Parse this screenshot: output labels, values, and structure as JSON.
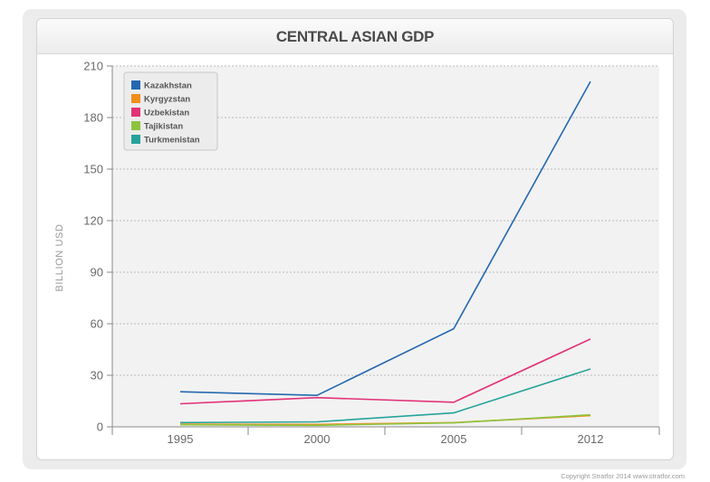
{
  "chart_data": {
    "type": "line",
    "title": "CENTRAL ASIAN GDP",
    "xlabel": "",
    "ylabel": "BILLION USD",
    "x": [
      "1995",
      "2000",
      "2005",
      "2012"
    ],
    "ylim": [
      0,
      210
    ],
    "yticks": [
      0,
      30,
      60,
      90,
      120,
      150,
      180,
      210
    ],
    "grid": true,
    "legend_position": "top-left",
    "series": [
      {
        "name": "Kazakhstan",
        "color": "#2468b0",
        "values": [
          20.4,
          18.3,
          57.1,
          201.0
        ]
      },
      {
        "name": "Kyrgyzstan",
        "color": "#f28e1c",
        "values": [
          1.5,
          1.4,
          2.5,
          6.5
        ]
      },
      {
        "name": "Uzbekistan",
        "color": "#e23278",
        "values": [
          13.4,
          17.0,
          14.3,
          51.1
        ]
      },
      {
        "name": "Tajikistan",
        "color": "#8cc43f",
        "values": [
          1.2,
          0.9,
          2.3,
          7.0
        ]
      },
      {
        "name": "Turkmenistan",
        "color": "#26a39a",
        "values": [
          2.5,
          2.9,
          8.1,
          33.7
        ]
      }
    ]
  },
  "footer": {
    "credit": "Copyright Stratfor 2014    www.stratfor.com"
  }
}
